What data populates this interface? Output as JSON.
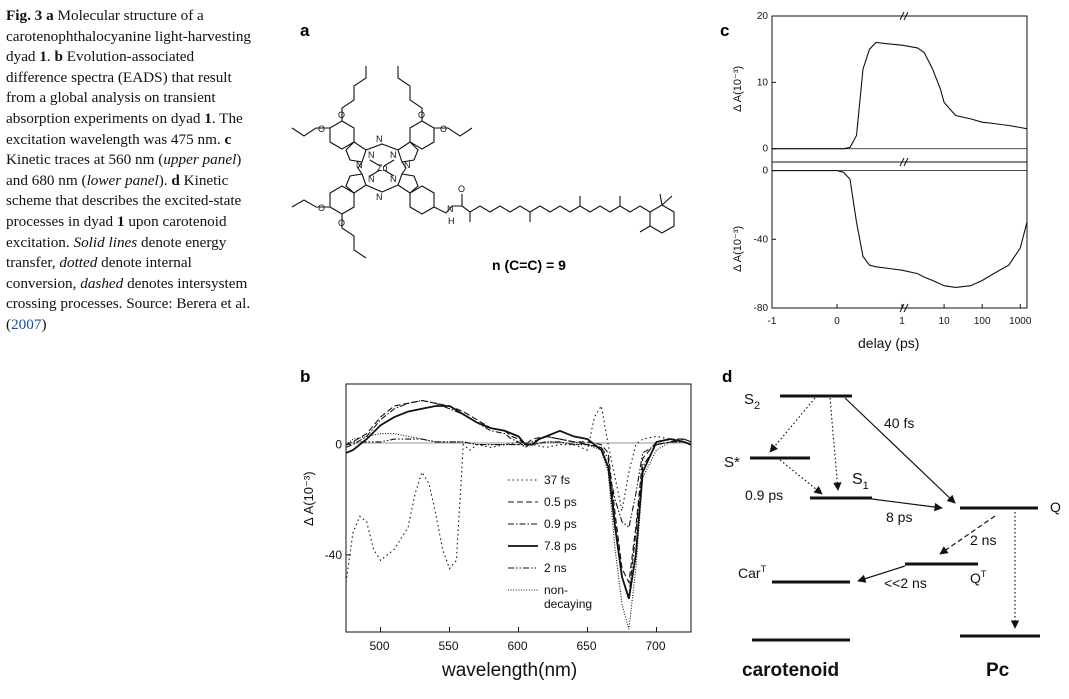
{
  "caption": {
    "fig_label": "Fig. 3",
    "a_letter": "a",
    "a_text": " Molecular structure of a carotenophthalocyanine light-harvesting dyad ",
    "dyad": "1",
    "b_letter": "b",
    "b_text": " Evolution-associated difference spectra (EADS) that result from a global analysis on transient absorption experiments on dyad ",
    "b_text2": ". The excitation wavelength was 475 nm. ",
    "c_letter": "c",
    "c_text": " Kinetic traces at 560 nm (",
    "upper": "upper panel",
    "c_text2": ") and 680 nm (",
    "lower": "lower panel",
    "c_text3": "). ",
    "d_letter": "d",
    "d_text": " Kinetic scheme that describes the excited-state processes in dyad ",
    "d_text2": " upon carotenoid excitation. ",
    "solid": "Solid lines",
    "solid_text": " denote energy transfer, ",
    "dotted": "dotted",
    "dotted_text": " denote internal conversion, ",
    "dashed": "dashed",
    "dashed_text": " denotes intersystem crossing processes. Source: Berera et al. (",
    "year": "2007",
    "close": ")"
  },
  "panel_a": {
    "letter": "a",
    "atom_labels": [
      "N",
      "N",
      "N",
      "N",
      "N",
      "N",
      "N",
      "N",
      "Zn",
      "N",
      "H",
      "O",
      "O",
      "O",
      "O",
      "O",
      "O",
      "O"
    ],
    "n_label": "n (C=C) = 9"
  },
  "panel_b": {
    "letter": "b",
    "chart_data": {
      "type": "line",
      "xlabel": "wavelength(nm)",
      "ylabel": "Δ A(10⁻³)",
      "xlim": [
        475,
        725
      ],
      "ylim": [
        -68,
        22
      ],
      "xticks": [
        500,
        550,
        600,
        650,
        700
      ],
      "yticks": [
        0,
        -40
      ],
      "legend_position": "bottom-center",
      "series": [
        {
          "name": "37  fs",
          "style": "dotted",
          "x": [
            475,
            480,
            485,
            490,
            495,
            500,
            505,
            510,
            520,
            525,
            530,
            535,
            540,
            545,
            550,
            555,
            560,
            565,
            570,
            580,
            590,
            600,
            610,
            620,
            630,
            640,
            650,
            655,
            660,
            665,
            670,
            675,
            680,
            685,
            690,
            700,
            710,
            720,
            725
          ],
          "y": [
            -50,
            -32,
            -26,
            -28,
            -38,
            -42,
            -40,
            -38,
            -30,
            -18,
            -10,
            -14,
            -25,
            -38,
            -45,
            -42,
            0,
            -2,
            0,
            -1,
            0,
            1,
            0,
            -1,
            0,
            0,
            -2,
            10,
            14,
            0,
            -12,
            -24,
            -10,
            0,
            2,
            3,
            2,
            1,
            0
          ]
        },
        {
          "name": "0.5 ps",
          "style": "dashed",
          "x": [
            475,
            480,
            490,
            500,
            510,
            520,
            530,
            540,
            550,
            560,
            570,
            580,
            590,
            595,
            600,
            605,
            610,
            620,
            630,
            640,
            650,
            660,
            665,
            670,
            675,
            680,
            685,
            690,
            700,
            710,
            720,
            725
          ],
          "y": [
            0,
            1,
            4,
            10,
            14,
            15,
            16,
            15,
            14,
            12,
            9,
            6,
            5,
            3,
            2,
            0,
            2,
            3,
            2,
            1,
            1,
            0,
            -3,
            -25,
            -45,
            -50,
            -30,
            -5,
            1,
            2,
            2,
            1
          ]
        },
        {
          "name": "0.9 ps",
          "style": "dashdot",
          "x": [
            475,
            480,
            490,
            500,
            510,
            520,
            530,
            540,
            550,
            560,
            570,
            580,
            590,
            595,
            600,
            605,
            610,
            620,
            630,
            640,
            650,
            660,
            665,
            670,
            675,
            680,
            685,
            690,
            700,
            710,
            720,
            725
          ],
          "y": [
            -1,
            0,
            3,
            9,
            13,
            15,
            16,
            15,
            13,
            11,
            8,
            5,
            4,
            2,
            1,
            -1,
            1,
            3,
            2,
            1,
            0,
            -1,
            -5,
            -28,
            -48,
            -55,
            -32,
            -8,
            0,
            1,
            2,
            1
          ]
        },
        {
          "name": "7.8 ps",
          "style": "solid",
          "x": [
            475,
            480,
            490,
            500,
            510,
            520,
            530,
            540,
            550,
            560,
            570,
            580,
            590,
            600,
            605,
            610,
            615,
            620,
            630,
            640,
            650,
            655,
            660,
            665,
            670,
            675,
            680,
            685,
            690,
            700,
            710,
            720,
            725
          ],
          "y": [
            -3,
            -2,
            2,
            7,
            10,
            12,
            13,
            14,
            14,
            11,
            8,
            6,
            5,
            3,
            0,
            0,
            2,
            3,
            5,
            3,
            2,
            0,
            -2,
            -8,
            -30,
            -48,
            -56,
            -40,
            -10,
            1,
            2,
            1,
            0
          ]
        },
        {
          "name": "2 ns",
          "style": "dashdotdot",
          "x": [
            475,
            480,
            490,
            500,
            510,
            520,
            530,
            540,
            550,
            560,
            570,
            580,
            590,
            600,
            610,
            620,
            630,
            640,
            650,
            660,
            665,
            670,
            675,
            680,
            685,
            690,
            700,
            710,
            720,
            725
          ],
          "y": [
            0,
            1,
            1,
            1,
            2,
            2,
            2,
            1,
            1,
            1,
            0,
            0,
            0,
            0,
            0,
            1,
            1,
            0,
            0,
            -1,
            -8,
            -20,
            -28,
            -30,
            -18,
            -3,
            0,
            1,
            1,
            0
          ]
        },
        {
          "name": "non-\ndecaying",
          "style": "finedot",
          "x": [
            475,
            480,
            490,
            500,
            510,
            520,
            530,
            540,
            550,
            560,
            570,
            580,
            590,
            600,
            610,
            620,
            630,
            640,
            650,
            660,
            665,
            670,
            675,
            680,
            685,
            690,
            700,
            710,
            720,
            725
          ],
          "y": [
            0,
            2,
            3,
            4,
            4,
            3,
            2,
            1,
            1,
            1,
            0,
            0,
            0,
            0,
            0,
            1,
            1,
            0,
            0,
            -2,
            -10,
            -38,
            -58,
            -67,
            -45,
            -12,
            -2,
            1,
            1,
            0
          ]
        }
      ]
    }
  },
  "panel_c": {
    "letter": "c",
    "chart_data": [
      {
        "type": "line",
        "ylabel": "Δ A(10⁻³)",
        "ylim": [
          -2,
          20
        ],
        "yticks": [
          0,
          10,
          20
        ],
        "x": [
          -1,
          -0.5,
          0,
          0.1,
          0.2,
          0.3,
          0.4,
          0.5,
          0.6,
          0.8,
          1,
          2,
          3,
          5,
          8,
          10,
          20,
          50,
          100,
          200,
          500,
          1000,
          1500
        ],
        "y": [
          0,
          0,
          0,
          0,
          0.2,
          2,
          12,
          15,
          16,
          15.8,
          15.6,
          15.2,
          14.5,
          12,
          9,
          7,
          5,
          4.5,
          4,
          3.8,
          3.5,
          3.2,
          3
        ]
      },
      {
        "type": "line",
        "xlabel": "delay (ps)",
        "ylabel": "Δ A(10⁻³)",
        "ylim": [
          -80,
          5
        ],
        "yticks": [
          0,
          -40,
          -80
        ],
        "xticks": [
          "-1",
          "0",
          "1",
          "10",
          "100",
          "1000"
        ],
        "x": [
          -1,
          -0.5,
          0,
          0.1,
          0.2,
          0.3,
          0.4,
          0.5,
          0.6,
          0.8,
          1,
          2,
          3,
          5,
          8,
          10,
          20,
          50,
          100,
          200,
          500,
          1000,
          1500
        ],
        "y": [
          0,
          0,
          0,
          -1,
          -5,
          -30,
          -50,
          -55,
          -56,
          -57,
          -58,
          -60,
          -62,
          -64,
          -66,
          -67,
          -68,
          -67,
          -64,
          -60,
          -55,
          -45,
          -30
        ]
      }
    ]
  },
  "panel_d": {
    "letter": "d",
    "labels": {
      "s2": "S",
      "s2_sub": "2",
      "s_star": "S*",
      "s1": "S",
      "s1_sub": "1",
      "fs40": "40 fs",
      "ps09": "0.9 ps",
      "ps8": "8 ps",
      "q": "Q",
      "ns2": "2 ns",
      "car_t": "Car",
      "car_t_sup": "T",
      "q_t": "Q",
      "q_t_sup": "T",
      "ns_lt2": "<<2 ns",
      "carotenoid": "carotenoid",
      "pc": "Pc"
    }
  }
}
